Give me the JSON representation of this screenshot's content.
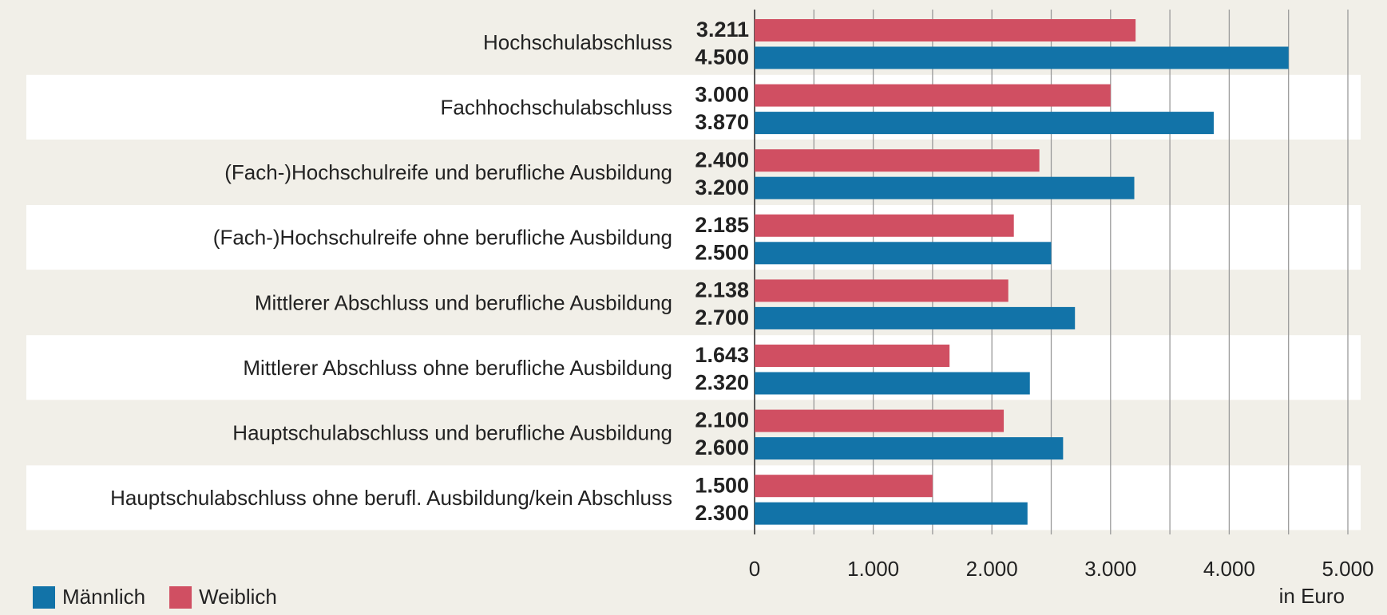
{
  "chart_data": {
    "type": "bar",
    "orientation": "horizontal",
    "categories": [
      "Hochschulabschluss",
      "Fachhochschulabschluss",
      "(Fach-)Hochschulreife und berufliche Ausbildung",
      "(Fach-)Hochschulreife ohne berufliche Ausbildung",
      "Mittlerer Abschluss und berufliche Ausbildung",
      "Mittlerer Abschluss ohne berufliche Ausbildung",
      "Hauptschulabschluss und berufliche Ausbildung",
      "Hauptschulabschluss ohne berufl. Ausbildung/kein Abschluss"
    ],
    "series": [
      {
        "name": "Männlich",
        "color": "#1273a8",
        "values": [
          4500,
          3870,
          3200,
          2500,
          2700,
          2320,
          2600,
          2300
        ],
        "value_labels": [
          "4.500",
          "3.870",
          "3.200",
          "2.500",
          "2.700",
          "2.320",
          "2.600",
          "2.300"
        ]
      },
      {
        "name": "Weiblich",
        "color": "#d04f62",
        "values": [
          3211,
          3000,
          2400,
          2185,
          2138,
          1643,
          2100,
          1500
        ],
        "value_labels": [
          "3.211",
          "3.000",
          "2.400",
          "2.185",
          "2.138",
          "1.643",
          "2.100",
          "1.500"
        ]
      }
    ],
    "xlabel": "in Euro",
    "xlim": [
      0,
      5000
    ],
    "xticks": [
      0,
      {
        "value": 1000,
        "label": "1.000"
      },
      {
        "value": 2000,
        "label": "2.000"
      },
      {
        "value": 3000,
        "label": "3.000"
      },
      {
        "value": 4000,
        "label": "4.000"
      },
      {
        "value": 5000,
        "label": "5.000"
      }
    ],
    "xminorticks": [
      500,
      1500,
      2500,
      3500,
      4500
    ],
    "grid": true,
    "legend": "bottom-left"
  }
}
